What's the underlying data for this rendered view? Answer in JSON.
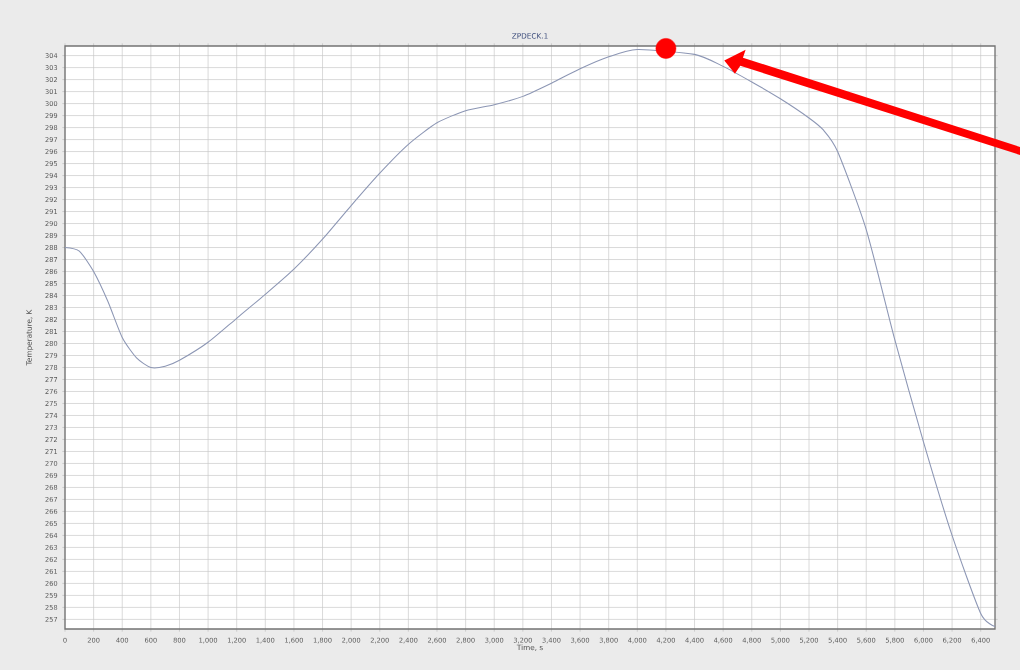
{
  "chart_data": {
    "type": "line",
    "title": "ZPDECK.1",
    "xlabel": "Time, s",
    "ylabel": "Temperature, K",
    "x": [
      0,
      100,
      200,
      300,
      400,
      500,
      600,
      700,
      800,
      1000,
      1200,
      1400,
      1600,
      1800,
      2000,
      2200,
      2400,
      2600,
      2800,
      3000,
      3200,
      3400,
      3600,
      3800,
      4000,
      4200,
      4400,
      4600,
      4800,
      5000,
      5200,
      5300,
      5400,
      5600,
      5800,
      6000,
      6200,
      6400,
      6500
    ],
    "series": [
      {
        "color": "#8c96b4",
        "values": [
          288.0,
          287.7,
          286.0,
          283.5,
          280.5,
          278.8,
          278.0,
          278.1,
          278.6,
          280.1,
          282.1,
          284.1,
          286.2,
          288.7,
          291.5,
          294.2,
          296.6,
          298.4,
          299.4,
          299.9,
          300.6,
          301.7,
          302.9,
          303.9,
          304.5,
          null,
          304.1,
          303.1,
          301.8,
          300.4,
          298.8,
          297.8,
          296.0,
          289.5,
          280.3,
          271.8,
          264.0,
          257.5,
          256.4
        ]
      },
      {
        "type": "scatter",
        "color": "#ff0000",
        "marker": "circle",
        "x": [
          4200
        ],
        "values": [
          304.6
        ]
      }
    ],
    "xlim": [
      0,
      6500
    ],
    "ylim": [
      256.2,
      304.8
    ],
    "xticks": [
      0,
      200,
      400,
      600,
      800,
      {
        "value": 1000,
        "label": "1,000"
      },
      {
        "value": 1200,
        "label": "1,200"
      },
      {
        "value": 1400,
        "label": "1,400"
      },
      {
        "value": 1600,
        "label": "1,600"
      },
      {
        "value": 1800,
        "label": "1,800"
      },
      {
        "value": 2000,
        "label": "2,000"
      },
      {
        "value": 2200,
        "label": "2,200"
      },
      {
        "value": 2400,
        "label": "2,400"
      },
      {
        "value": 2600,
        "label": "2,600"
      },
      {
        "value": 2800,
        "label": "2,800"
      },
      {
        "value": 3000,
        "label": "3,000"
      },
      {
        "value": 3200,
        "label": "3,200"
      },
      {
        "value": 3400,
        "label": "3,400"
      },
      {
        "value": 3600,
        "label": "3,600"
      },
      {
        "value": 3800,
        "label": "3,800"
      },
      {
        "value": 4000,
        "label": "4,000"
      },
      {
        "value": 4200,
        "label": "4,200"
      },
      {
        "value": 4400,
        "label": "4,400"
      },
      {
        "value": 4600,
        "label": "4,600"
      },
      {
        "value": 4800,
        "label": "4,800"
      },
      {
        "value": 5000,
        "label": "5,000"
      },
      {
        "value": 5200,
        "label": "5,200"
      },
      {
        "value": 5400,
        "label": "5,400"
      },
      {
        "value": 5600,
        "label": "5,600"
      },
      {
        "value": 5800,
        "label": "5,800"
      },
      {
        "value": 6000,
        "label": "6,000"
      },
      {
        "value": 6200,
        "label": "6,200"
      },
      {
        "value": 6400,
        "label": "6,400"
      }
    ],
    "yticks": [
      257,
      258,
      259,
      260,
      261,
      262,
      263,
      264,
      265,
      266,
      267,
      268,
      269,
      270,
      271,
      272,
      273,
      274,
      275,
      276,
      277,
      278,
      279,
      280,
      281,
      282,
      283,
      284,
      285,
      286,
      287,
      288,
      289,
      290,
      291,
      292,
      293,
      294,
      295,
      296,
      297,
      298,
      299,
      300,
      301,
      302,
      303,
      304
    ],
    "grid": true
  }
}
